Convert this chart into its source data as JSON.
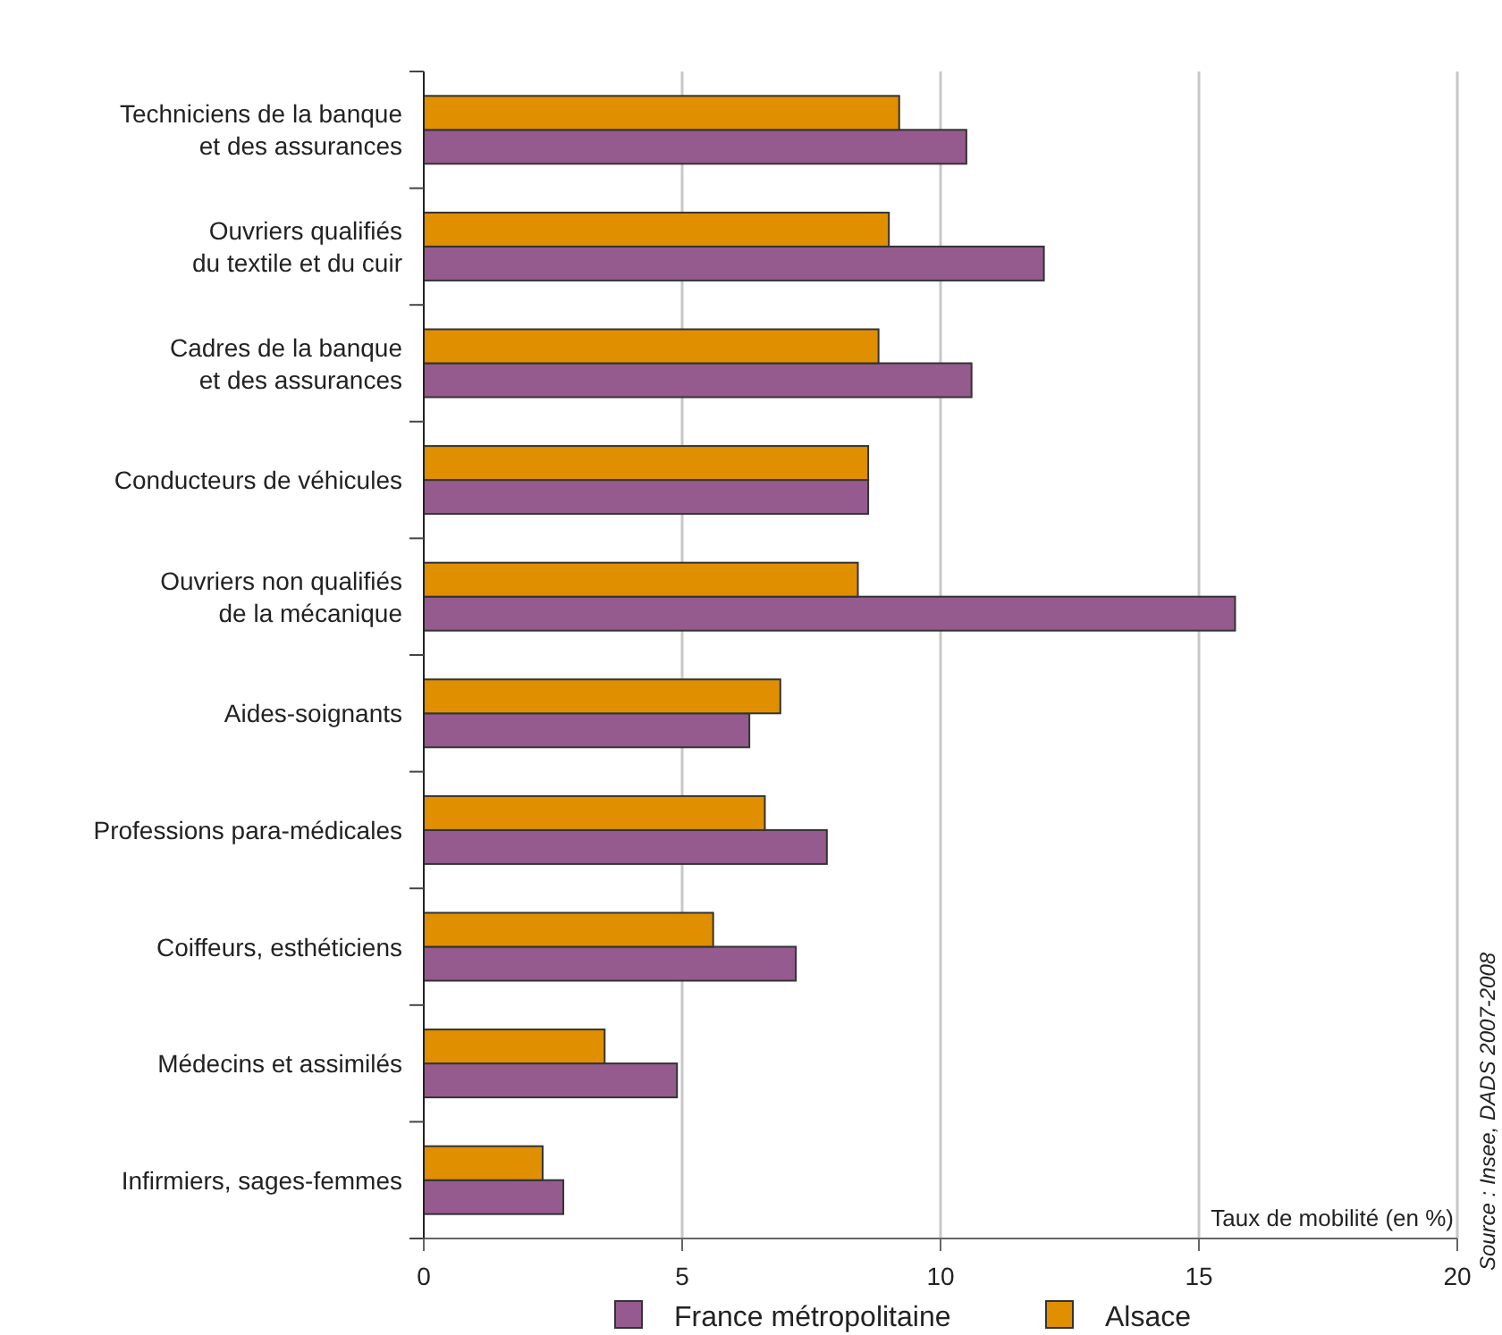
{
  "chart_data": {
    "type": "bar",
    "orientation": "horizontal",
    "xlabel": "Taux de mobilité (en %)",
    "categories": [
      "Techniciens de la banque\net des assurances",
      "Ouvriers qualifiés\ndu textile et du cuir",
      "Cadres de la banque\net des assurances",
      "Conducteurs de véhicules",
      "Ouvriers non qualifiés\nde la mécanique",
      "Aides-soignants",
      "Professions para-médicales",
      "Coiffeurs, esthéticiens",
      "Médecins et assimilés",
      "Infirmiers, sages-femmes"
    ],
    "series": [
      {
        "name": "France métropolitaine",
        "color": "#955b8f",
        "values": [
          10.5,
          12.0,
          10.6,
          8.6,
          15.7,
          6.3,
          7.8,
          7.2,
          4.9,
          2.7
        ]
      },
      {
        "name": "Alsace",
        "color": "#e08f00",
        "values": [
          9.2,
          9.0,
          8.8,
          8.6,
          8.4,
          6.9,
          6.6,
          5.6,
          3.5,
          2.3
        ]
      }
    ],
    "xlim": [
      0,
      20
    ],
    "xticks": [
      0,
      5,
      10,
      15,
      20
    ],
    "grid": "x",
    "legend": "bottom",
    "annotations": [
      "Source : Insee, DADS 2007-2008"
    ]
  }
}
